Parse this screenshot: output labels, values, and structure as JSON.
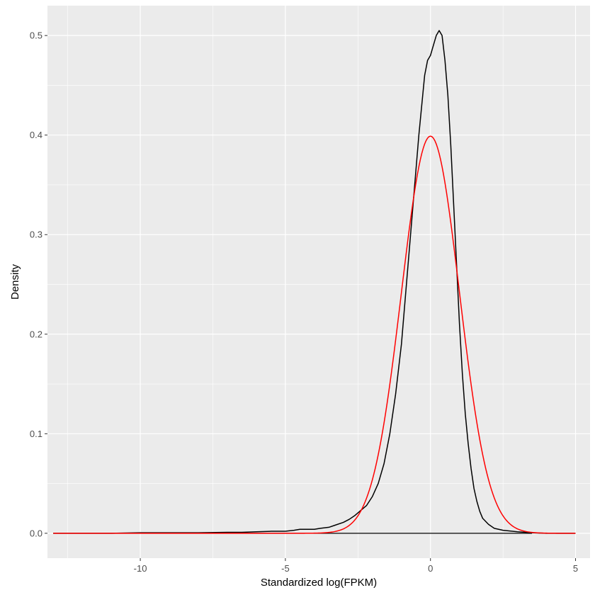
{
  "chart_data": {
    "type": "line",
    "title": "",
    "xlabel": "Standardized log(FPKM)",
    "ylabel": "Density",
    "xlim": [
      -13.2,
      5.5
    ],
    "ylim": [
      -0.025,
      0.53
    ],
    "x_ticks": [
      -10,
      -5,
      0,
      5
    ],
    "x_tick_labels": [
      "-10",
      "-5",
      "0",
      "5"
    ],
    "y_ticks": [
      0.0,
      0.1,
      0.2,
      0.3,
      0.4,
      0.5
    ],
    "y_tick_labels": [
      "0.0",
      "0.1",
      "0.2",
      "0.3",
      "0.4",
      "0.5"
    ],
    "grid": true,
    "background": "#ebebeb",
    "series": [
      {
        "color": "#000000",
        "points": [
          [
            -13,
            0.0
          ],
          [
            -12,
            0.0
          ],
          [
            -11,
            0.0
          ],
          [
            -10,
            0.0005
          ],
          [
            -9,
            0.0005
          ],
          [
            -8,
            0.0005
          ],
          [
            -7,
            0.001
          ],
          [
            -6.5,
            0.001
          ],
          [
            -6,
            0.0015
          ],
          [
            -5.5,
            0.002
          ],
          [
            -5,
            0.002
          ],
          [
            -4.7,
            0.003
          ],
          [
            -4.5,
            0.004
          ],
          [
            -4.2,
            0.004
          ],
          [
            -4,
            0.004
          ],
          [
            -3.8,
            0.005
          ],
          [
            -3.5,
            0.006
          ],
          [
            -3.3,
            0.008
          ],
          [
            -3.0,
            0.011
          ],
          [
            -2.8,
            0.014
          ],
          [
            -2.6,
            0.018
          ],
          [
            -2.4,
            0.023
          ],
          [
            -2.2,
            0.028
          ],
          [
            -2.0,
            0.037
          ],
          [
            -1.8,
            0.05
          ],
          [
            -1.6,
            0.07
          ],
          [
            -1.4,
            0.1
          ],
          [
            -1.2,
            0.14
          ],
          [
            -1.0,
            0.19
          ],
          [
            -0.8,
            0.26
          ],
          [
            -0.6,
            0.33
          ],
          [
            -0.4,
            0.4
          ],
          [
            -0.2,
            0.46
          ],
          [
            -0.1,
            0.475
          ],
          [
            0.0,
            0.48
          ],
          [
            0.1,
            0.49
          ],
          [
            0.2,
            0.5
          ],
          [
            0.3,
            0.505
          ],
          [
            0.4,
            0.5
          ],
          [
            0.5,
            0.475
          ],
          [
            0.6,
            0.44
          ],
          [
            0.7,
            0.39
          ],
          [
            0.8,
            0.33
          ],
          [
            0.9,
            0.27
          ],
          [
            1.0,
            0.21
          ],
          [
            1.1,
            0.16
          ],
          [
            1.2,
            0.12
          ],
          [
            1.3,
            0.09
          ],
          [
            1.4,
            0.065
          ],
          [
            1.5,
            0.045
          ],
          [
            1.6,
            0.032
          ],
          [
            1.7,
            0.022
          ],
          [
            1.8,
            0.015
          ],
          [
            2.0,
            0.009
          ],
          [
            2.2,
            0.005
          ],
          [
            2.5,
            0.003
          ],
          [
            3.0,
            0.0015
          ],
          [
            3.5,
            0.0005
          ],
          [
            4.0,
            0.0
          ],
          [
            5.0,
            0.0
          ]
        ]
      },
      {
        "color": "#ff0000",
        "points": "normal"
      }
    ],
    "baseline": {
      "color": "#000000",
      "from": -13,
      "to": 3.5,
      "y": 0.0
    }
  }
}
